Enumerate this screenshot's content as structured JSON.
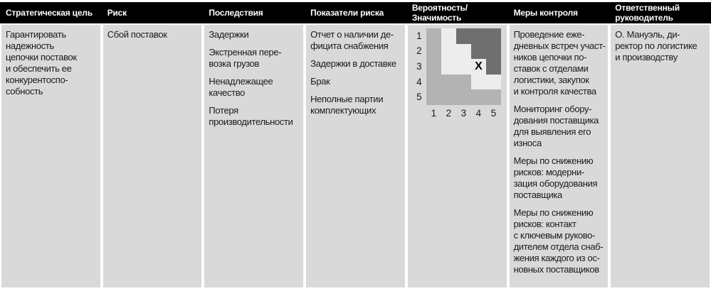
{
  "table": {
    "columns": [
      {
        "header": "Стратегическая цель",
        "paragraphs": [
          "Гарантировать\nнадежность\nцепочки поставок\nи обеспечить ее\nконкурентоспо-\nсобность"
        ]
      },
      {
        "header": "Риск",
        "paragraphs": [
          "Сбой поставок"
        ]
      },
      {
        "header": "Последствия",
        "paragraphs": [
          "Задержки",
          "Экстренная пере-\nвозка грузов",
          "Ненадлежащее\nкачество",
          "Потеря\nпроизводительности"
        ]
      },
      {
        "header": "Показатели риска",
        "paragraphs": [
          "Отчет о наличии де-\nфицита снабжения",
          "Задержки в доставке",
          "Брак",
          "Неполные партии\nкомплектующих"
        ]
      },
      {
        "header": "Вероятность/\nЗначимость",
        "paragraphs": []
      },
      {
        "header": "Меры контроля",
        "paragraphs": [
          "Проведение еже-\nдневных встреч участ-\nников цепочки по-\nставок с отделами\nлогистики, закупок\nи контроля качества",
          "Мониторинг обору-\nдования поставщика\nдля выявления его\nизноса",
          "Меры по снижению\nрисков: модерни-\nзация оборудования\nпоставщика",
          "Меры по снижению\nрисков: контакт\nс ключевым руково-\nдителем отдела снаб-\nжения каждого из ос-\nновных поставщиков"
        ]
      },
      {
        "header": "Ответственный\nруководитель",
        "paragraphs": [
          "О. Мануэль, ди-\nректор по логистике\nи производству"
        ]
      }
    ]
  },
  "risk_matrix": {
    "row_axis_labels": [
      "1",
      "2",
      "3",
      "4",
      "5"
    ],
    "col_axis_labels": [
      "1",
      "2",
      "3",
      "4",
      "5"
    ],
    "cells": [
      [
        "M",
        "L",
        "D",
        "D",
        "D"
      ],
      [
        "M",
        "L",
        "L",
        "D",
        "D"
      ],
      [
        "M",
        "L",
        "L",
        "L",
        "D"
      ],
      [
        "M",
        "M",
        "M",
        "L",
        "L"
      ],
      [
        "M",
        "M",
        "M",
        "M",
        "M"
      ]
    ],
    "marker": {
      "row": 3,
      "col": 4,
      "symbol": "X"
    },
    "colors": {
      "L": "#ededed",
      "M": "#b3b3b3",
      "D": "#6f6f6f"
    }
  },
  "theme": {
    "header_bg": "#000000",
    "header_text": "#ffffff",
    "cell_bg": "#d9d9d9",
    "text": "#1a1a1a"
  }
}
